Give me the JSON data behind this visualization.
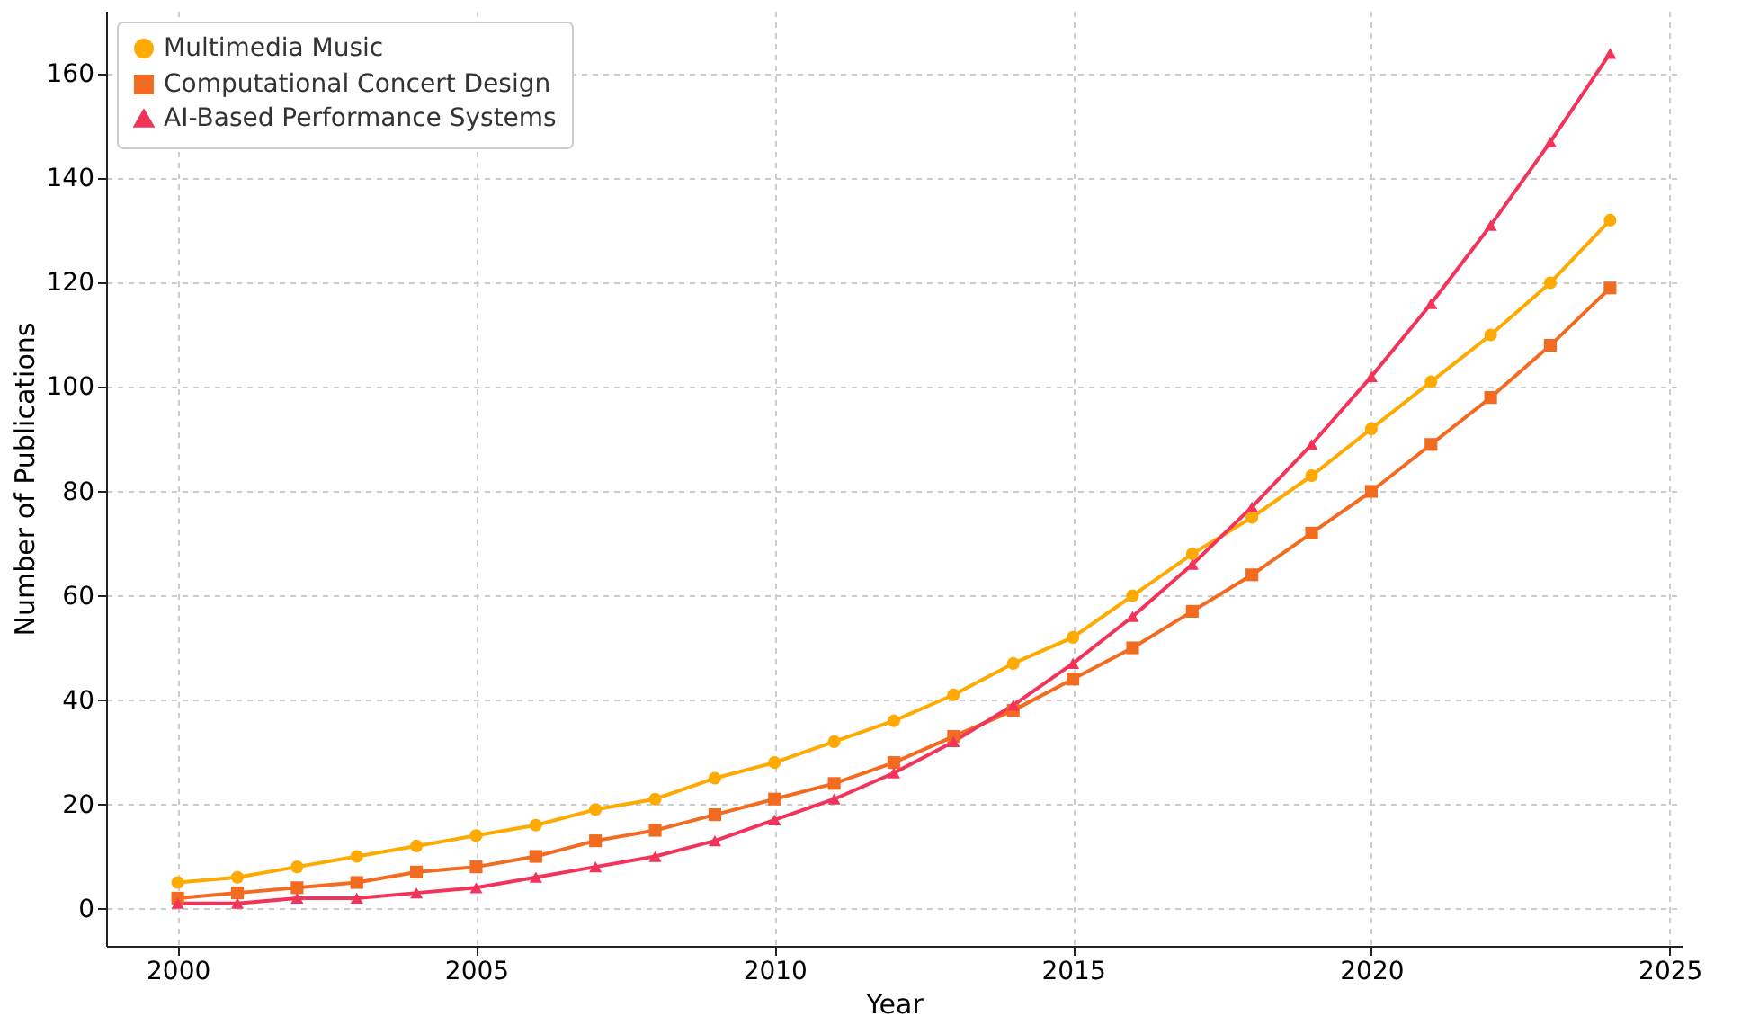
{
  "chart_data": {
    "type": "line",
    "xlabel": "Year",
    "ylabel": "Number of Publications",
    "x": [
      2000,
      2001,
      2002,
      2003,
      2004,
      2005,
      2006,
      2007,
      2008,
      2009,
      2010,
      2011,
      2012,
      2013,
      2014,
      2015,
      2016,
      2017,
      2018,
      2019,
      2020,
      2021,
      2022,
      2023,
      2024
    ],
    "series": [
      {
        "name": "Multimedia Music",
        "color": "#ffaa00",
        "marker": "circle",
        "values": [
          5,
          6,
          8,
          10,
          12,
          14,
          16,
          19,
          21,
          25,
          28,
          32,
          36,
          41,
          47,
          52,
          60,
          68,
          75,
          83,
          92,
          101,
          110,
          120,
          132
        ]
      },
      {
        "name": "Computational Concert Design",
        "color": "#f26b21",
        "marker": "square",
        "values": [
          2,
          3,
          4,
          5,
          7,
          8,
          10,
          13,
          15,
          18,
          21,
          24,
          28,
          33,
          38,
          44,
          50,
          57,
          64,
          72,
          80,
          89,
          98,
          108,
          119
        ]
      },
      {
        "name": "AI-Based Performance Systems",
        "color": "#f2345a",
        "marker": "triangle",
        "values": [
          1,
          1,
          2,
          2,
          3,
          4,
          6,
          8,
          10,
          13,
          17,
          21,
          26,
          32,
          39,
          47,
          56,
          66,
          77,
          89,
          102,
          116,
          131,
          147,
          164
        ]
      }
    ],
    "xlim": [
      1998.8,
      2025.2
    ],
    "xticks": [
      2000,
      2005,
      2010,
      2015,
      2020,
      2025
    ],
    "ylim": [
      -7.15,
      172.15
    ],
    "yticks": [
      0,
      20,
      40,
      60,
      80,
      100,
      120,
      140,
      160
    ],
    "grid": true,
    "legend": "top left",
    "line_style": "solid"
  }
}
